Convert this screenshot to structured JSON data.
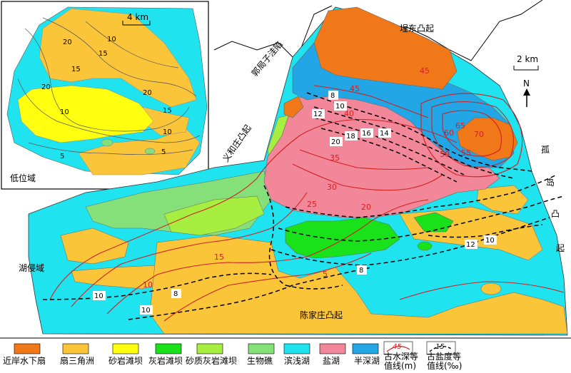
{
  "colors": {
    "near_shore_fan": "#f07818",
    "fan_delta": "#fbc53a",
    "sandstone_bar": "#ffff10",
    "limestone_bar": "#19e11a",
    "sandy_limestone_bar": "#a6ee3f",
    "bioherm": "#86e07a",
    "shallow_lake": "#1fe4f0",
    "salt_lake": "#f3879a",
    "semi_deep_lake": "#22a6e6",
    "water_depth_contour": "#d02020",
    "salinity_contour": "#000000"
  },
  "inset": {
    "scale_label": "4 km",
    "region_label": "低位域",
    "contour_labels": [
      "20",
      "10",
      "15",
      "15",
      "20",
      "10",
      "15",
      "20",
      "10",
      "5",
      "5"
    ]
  },
  "main_map": {
    "scale_label": "2 km",
    "north_label": "N",
    "place_labels": {
      "uplift_northeast": "埕东凸起",
      "depression_north": "郭局子洼陷",
      "uplift_west": "义和庄凸起",
      "uplift_east_1": "孤",
      "uplift_east_2": "岛",
      "uplift_east_3": "凸",
      "uplift_east_4": "起",
      "lake_invasion": "湖侵域",
      "uplift_south": "陈家庄凸起"
    },
    "depth_labels": [
      "45",
      "40",
      "35",
      "30",
      "25",
      "20",
      "15",
      "10",
      "5",
      "45",
      "50",
      "55",
      "60",
      "65",
      "70"
    ],
    "salinity_labels": [
      "8",
      "10",
      "12",
      "18",
      "16",
      "14",
      "20",
      "10",
      "12",
      "8",
      "10",
      "8",
      "10"
    ]
  },
  "legend": [
    {
      "key": "near_shore_fan",
      "label": "近岸水下扇"
    },
    {
      "key": "fan_delta",
      "label": "扇三角洲"
    },
    {
      "key": "sandstone_bar",
      "label": "砂岩滩坝"
    },
    {
      "key": "limestone_bar",
      "label": "灰岩滩坝"
    },
    {
      "key": "sandy_limestone_bar",
      "label": "砂质灰岩滩坝"
    },
    {
      "key": "bioherm",
      "label": "生物礁"
    },
    {
      "key": "shallow_lake",
      "label": "滨浅湖"
    },
    {
      "key": "salt_lake",
      "label": "盐湖"
    },
    {
      "key": "semi_deep_lake",
      "label": "半深湖"
    }
  ],
  "legend_lines": [
    {
      "sample": "45",
      "label_line1": "古水深等",
      "label_line2": "值线(m)"
    },
    {
      "sample": "15",
      "label_line1": "古盐度等",
      "label_line2": "值线(‰)"
    }
  ]
}
